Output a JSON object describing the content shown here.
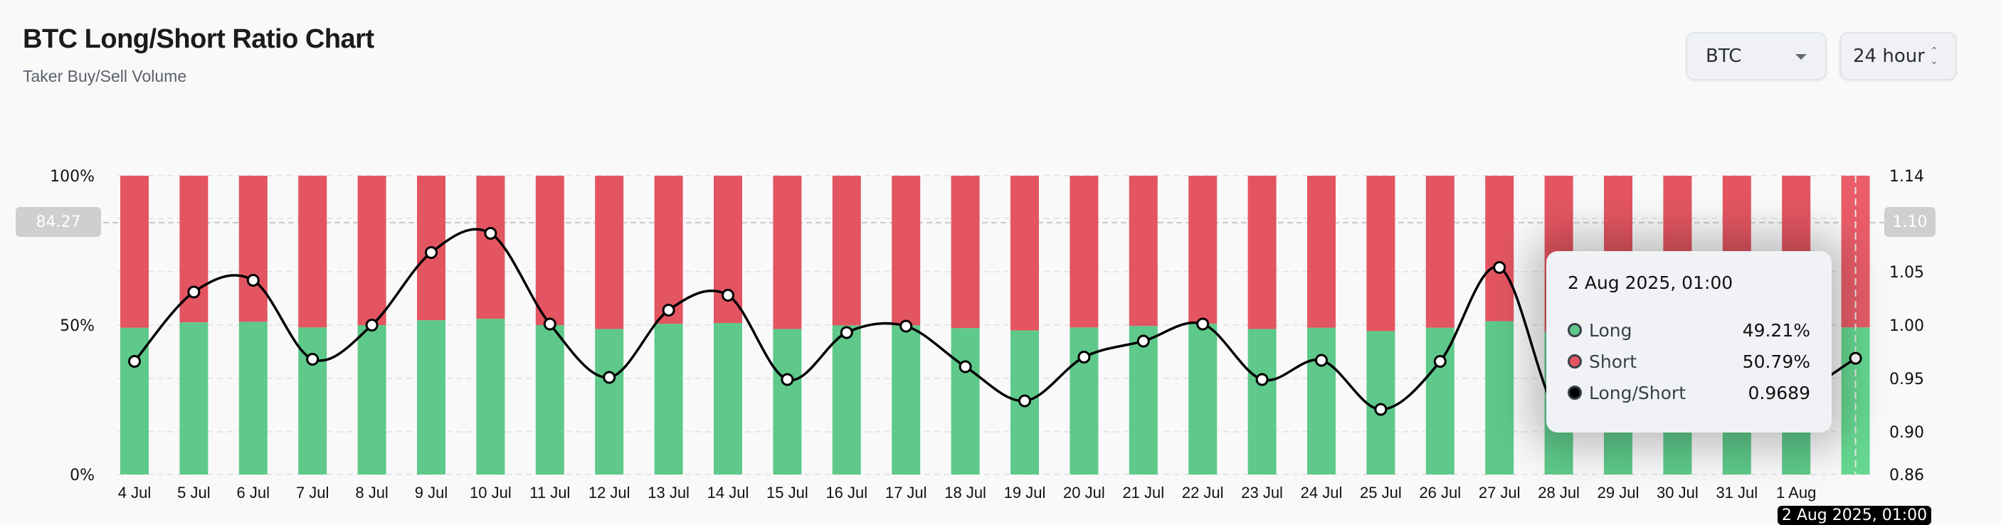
{
  "header": {
    "title": "BTC Long/Short Ratio Chart",
    "subtitle": "Taker Buy/Sell Volume",
    "coin_select": "BTC",
    "range_select": "24 hour"
  },
  "colors": {
    "long": "#5ec98a",
    "short": "#e35561",
    "line": "#000000"
  },
  "crosshair": {
    "left_value": "84.27",
    "right_value": "1.10",
    "x_label": "2 Aug 2025, 01:00"
  },
  "tooltip": {
    "title": "2 Aug 2025, 01:00",
    "rows": [
      {
        "label": "Long",
        "value": "49.21%",
        "color": "#5ec98a"
      },
      {
        "label": "Short",
        "value": "50.79%",
        "color": "#e35561"
      },
      {
        "label": "Long/Short",
        "value": "0.9689",
        "color": "#000000"
      }
    ]
  },
  "chart_data": {
    "type": "bar",
    "title": "BTC Long/Short Ratio Chart",
    "stacked": true,
    "categories": [
      "4 Jul",
      "5 Jul",
      "6 Jul",
      "7 Jul",
      "8 Jul",
      "9 Jul",
      "10 Jul",
      "11 Jul",
      "12 Jul",
      "13 Jul",
      "14 Jul",
      "15 Jul",
      "16 Jul",
      "17 Jul",
      "18 Jul",
      "19 Jul",
      "20 Jul",
      "21 Jul",
      "22 Jul",
      "23 Jul",
      "24 Jul",
      "25 Jul",
      "26 Jul",
      "27 Jul",
      "28 Jul",
      "29 Jul",
      "30 Jul",
      "31 Jul",
      "1 Aug",
      "2 Aug"
    ],
    "series": [
      {
        "name": "Long",
        "axis": "left",
        "values": [
          49.1,
          50.9,
          51.1,
          49.2,
          50.0,
          51.6,
          52.1,
          50.0,
          48.7,
          50.4,
          50.7,
          48.7,
          49.9,
          49.9,
          49.0,
          48.2,
          49.2,
          49.7,
          50.5,
          48.7,
          49.1,
          48.0,
          49.1,
          51.3,
          47.8,
          48.2,
          48.5,
          47.9,
          48.3,
          49.21
        ]
      },
      {
        "name": "Short",
        "axis": "left",
        "values": [
          50.9,
          49.1,
          48.9,
          50.8,
          50.0,
          48.4,
          47.9,
          50.0,
          51.3,
          49.6,
          49.3,
          51.3,
          50.1,
          50.1,
          51.0,
          51.8,
          50.8,
          50.3,
          49.5,
          51.3,
          50.9,
          52.0,
          50.9,
          48.7,
          52.2,
          51.8,
          51.5,
          52.1,
          51.7,
          50.79
        ]
      },
      {
        "name": "Long/Short",
        "type": "line",
        "axis": "right",
        "values": [
          0.966,
          1.031,
          1.042,
          0.968,
          1.0,
          1.068,
          1.086,
          1.001,
          0.951,
          1.014,
          1.028,
          0.949,
          0.993,
          0.999,
          0.961,
          0.929,
          0.97,
          0.985,
          1.001,
          0.949,
          0.967,
          0.921,
          0.966,
          1.054,
          0.916,
          0.93,
          0.942,
          0.919,
          0.934,
          0.9689
        ]
      }
    ],
    "y_left": {
      "ticks": [
        "0%",
        "50%",
        "100%"
      ],
      "range": [
        0,
        100
      ]
    },
    "y_right": {
      "ticks": [
        "0.86",
        "0.90",
        "0.95",
        "1.00",
        "1.05",
        "1.10",
        "1.14"
      ],
      "range": [
        0.86,
        1.14
      ]
    },
    "grid": true,
    "legend": "none"
  }
}
